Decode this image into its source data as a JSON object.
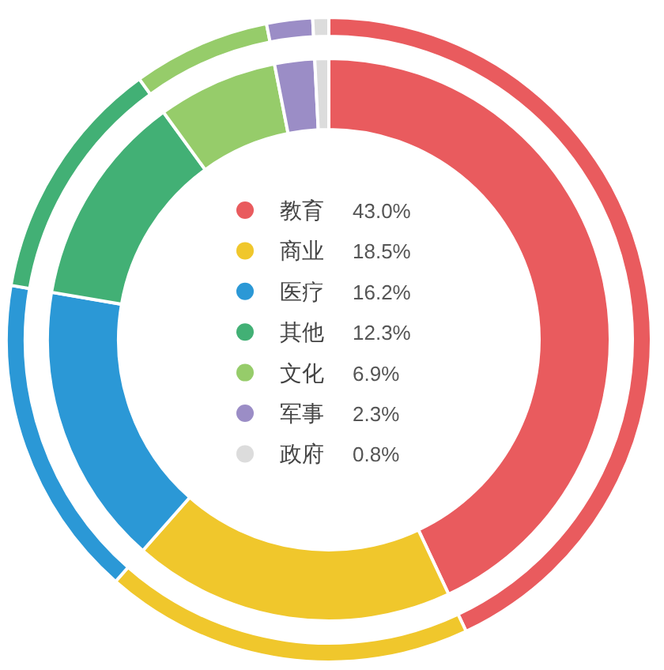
{
  "chart_data": {
    "type": "donut",
    "categories": [
      "教育",
      "商业",
      "医疗",
      "其他",
      "文化",
      "军事",
      "政府"
    ],
    "colors": [
      "#e95b5e",
      "#f0c72c",
      "#2b98d6",
      "#42b075",
      "#96cc6a",
      "#9b8dc6",
      "#dcdcdc"
    ],
    "series": [
      {
        "values": [
          43.0,
          18.5,
          16.2,
          12.3,
          6.9,
          2.3,
          0.8
        ]
      },
      {
        "values": [
          43.0,
          18.5,
          16.2,
          12.3,
          6.9,
          2.3,
          0.8
        ]
      }
    ],
    "value_labels": [
      "43.0%",
      "18.5%",
      "16.2%",
      "12.3%",
      "6.9%",
      "2.3%",
      "0.8%"
    ],
    "legend": "center"
  }
}
